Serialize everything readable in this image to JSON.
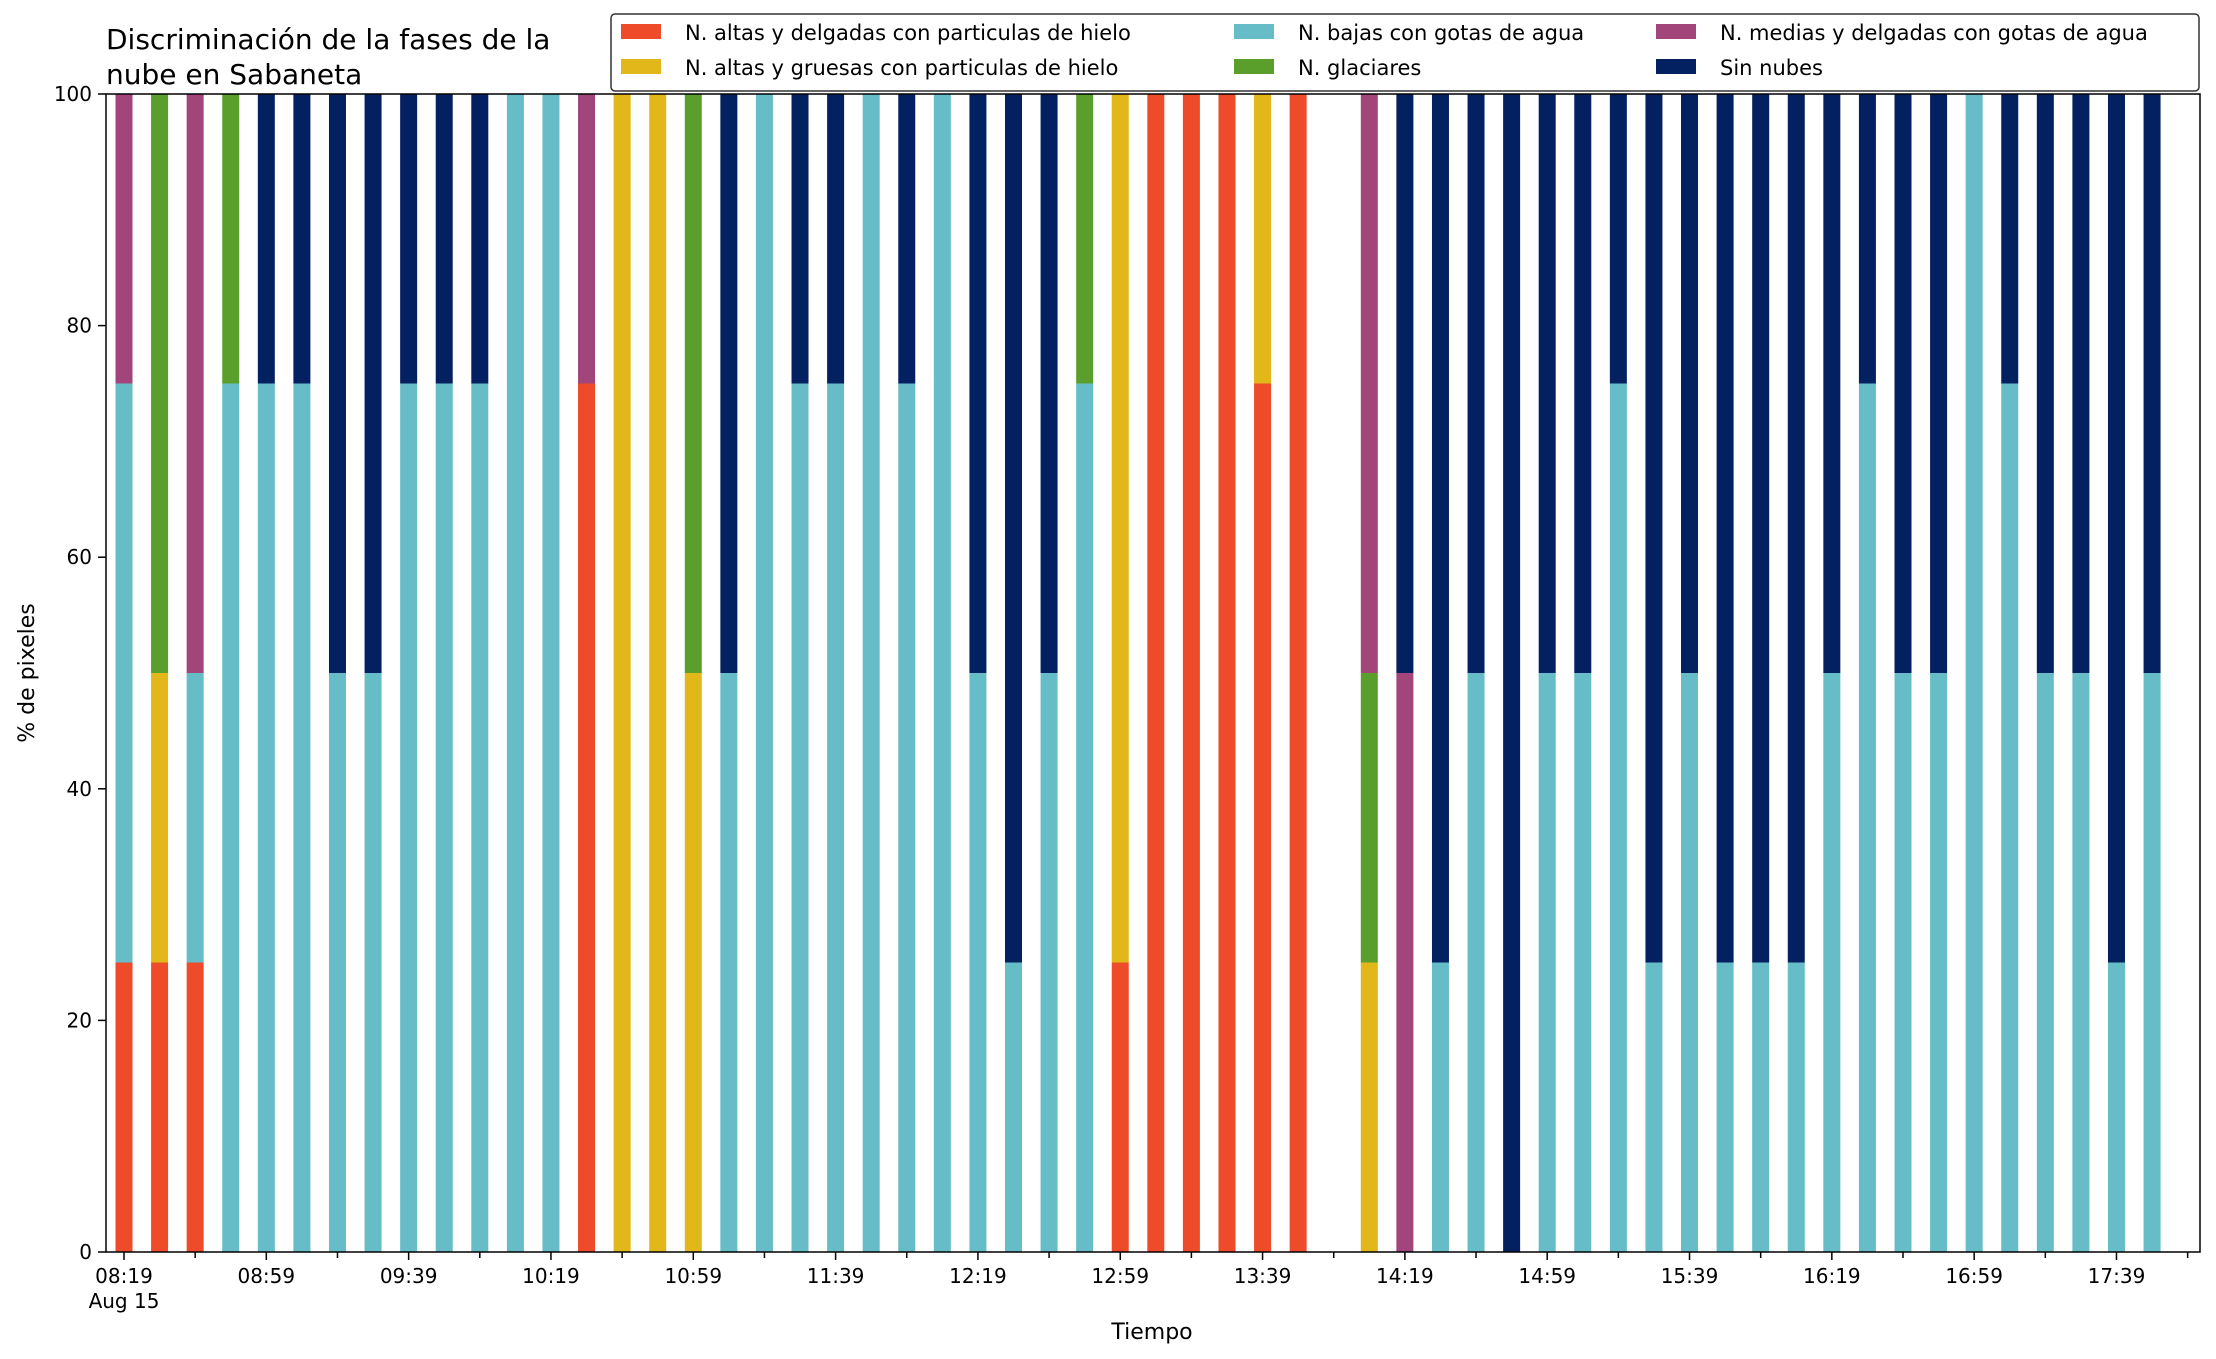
{
  "chart_data": {
    "type": "bar",
    "stacked": true,
    "title_lines": [
      "Discriminación de la fases de la",
      "nube en Sabaneta"
    ],
    "xlabel": "Tiempo",
    "ylabel": "% de pixeles",
    "ylim": [
      0,
      100
    ],
    "yticks": [
      "0",
      "20",
      "40",
      "60",
      "80",
      "100"
    ],
    "xtick_labels": [
      "08:19",
      "08:59",
      "09:39",
      "10:19",
      "10:59",
      "11:39",
      "12:19",
      "12:59",
      "13:39",
      "14:19",
      "14:59",
      "15:39",
      "16:19",
      "16:59",
      "17:39"
    ],
    "xtick_sublabel": "Aug 15",
    "grid": false,
    "legend_position": "top-right",
    "times": [
      "08:19",
      "08:29",
      "08:39",
      "08:49",
      "08:59",
      "09:09",
      "09:19",
      "09:29",
      "09:39",
      "09:49",
      "09:59",
      "10:09",
      "10:19",
      "10:29",
      "10:39",
      "10:49",
      "10:59",
      "11:09",
      "11:19",
      "11:29",
      "11:39",
      "11:49",
      "11:59",
      "12:09",
      "12:19",
      "12:29",
      "12:39",
      "12:49",
      "12:59",
      "13:09",
      "13:19",
      "13:29",
      "13:39",
      "13:49",
      "13:59",
      "14:09",
      "14:19",
      "14:29",
      "14:39",
      "14:49",
      "14:59",
      "15:09",
      "15:19",
      "15:29",
      "15:39",
      "15:49",
      "15:59",
      "16:09",
      "16:19",
      "16:29",
      "16:39",
      "16:49",
      "16:59",
      "17:09",
      "17:19",
      "17:29",
      "17:39",
      "17:49"
    ],
    "series": [
      {
        "name": "N. altas y delgadas con particulas de hielo",
        "color": "#ee4b2b",
        "values": [
          25,
          25,
          25,
          0,
          0,
          0,
          0,
          0,
          0,
          0,
          0,
          0,
          0,
          75,
          0,
          0,
          0,
          0,
          0,
          0,
          0,
          0,
          0,
          0,
          0,
          0,
          0,
          0,
          25,
          100,
          100,
          100,
          75,
          100,
          0,
          0,
          0,
          0,
          0,
          0,
          0,
          0,
          0,
          0,
          0,
          0,
          0,
          0,
          0,
          0,
          0,
          0,
          0,
          0,
          0,
          0,
          0,
          0
        ]
      },
      {
        "name": "N. altas y gruesas con particulas de hielo",
        "color": "#e2b719",
        "values": [
          0,
          25,
          0,
          0,
          0,
          0,
          0,
          0,
          0,
          0,
          0,
          0,
          0,
          0,
          100,
          100,
          50,
          0,
          0,
          0,
          0,
          0,
          0,
          0,
          0,
          0,
          0,
          0,
          75,
          0,
          0,
          0,
          25,
          0,
          0,
          25,
          0,
          0,
          0,
          0,
          0,
          0,
          0,
          0,
          0,
          0,
          0,
          0,
          0,
          0,
          0,
          0,
          0,
          0,
          0,
          0,
          0,
          0
        ]
      },
      {
        "name": "N. bajas con gotas de agua",
        "color": "#66bdc8",
        "values": [
          50,
          0,
          25,
          75,
          75,
          75,
          50,
          50,
          75,
          75,
          75,
          100,
          100,
          0,
          0,
          0,
          0,
          50,
          100,
          75,
          75,
          100,
          75,
          100,
          50,
          25,
          50,
          75,
          0,
          0,
          0,
          0,
          0,
          0,
          0,
          0,
          0,
          25,
          50,
          0,
          50,
          50,
          75,
          25,
          50,
          25,
          25,
          25,
          50,
          75,
          50,
          50,
          100,
          75,
          50,
          50,
          25,
          50
        ]
      },
      {
        "name": "N. glaciares",
        "color": "#5a9e2b",
        "values": [
          0,
          50,
          0,
          25,
          0,
          0,
          0,
          0,
          0,
          0,
          0,
          0,
          0,
          0,
          0,
          0,
          50,
          0,
          0,
          0,
          0,
          0,
          0,
          0,
          0,
          0,
          0,
          25,
          0,
          0,
          0,
          0,
          0,
          0,
          0,
          25,
          0,
          0,
          0,
          0,
          0,
          0,
          0,
          0,
          0,
          0,
          0,
          0,
          0,
          0,
          0,
          0,
          0,
          0,
          0,
          0,
          0,
          0
        ]
      },
      {
        "name": "N. medias y delgadas con gotas de agua",
        "color": "#a2457a",
        "values": [
          25,
          0,
          50,
          0,
          0,
          0,
          0,
          0,
          0,
          0,
          0,
          0,
          0,
          25,
          0,
          0,
          0,
          0,
          0,
          0,
          0,
          0,
          0,
          0,
          0,
          0,
          0,
          0,
          0,
          0,
          0,
          0,
          0,
          0,
          0,
          50,
          50,
          0,
          0,
          0,
          0,
          0,
          0,
          0,
          0,
          0,
          0,
          0,
          0,
          0,
          0,
          0,
          0,
          0,
          0,
          0,
          0,
          0
        ]
      },
      {
        "name": "Sin nubes",
        "color": "#032061",
        "values": [
          0,
          0,
          0,
          0,
          25,
          25,
          50,
          50,
          25,
          25,
          25,
          0,
          0,
          0,
          0,
          0,
          0,
          50,
          0,
          25,
          25,
          0,
          25,
          0,
          50,
          75,
          50,
          0,
          0,
          0,
          0,
          0,
          0,
          0,
          0,
          0,
          50,
          75,
          50,
          100,
          50,
          50,
          25,
          75,
          50,
          75,
          75,
          75,
          50,
          25,
          50,
          50,
          0,
          25,
          50,
          50,
          75,
          50
        ]
      }
    ]
  }
}
